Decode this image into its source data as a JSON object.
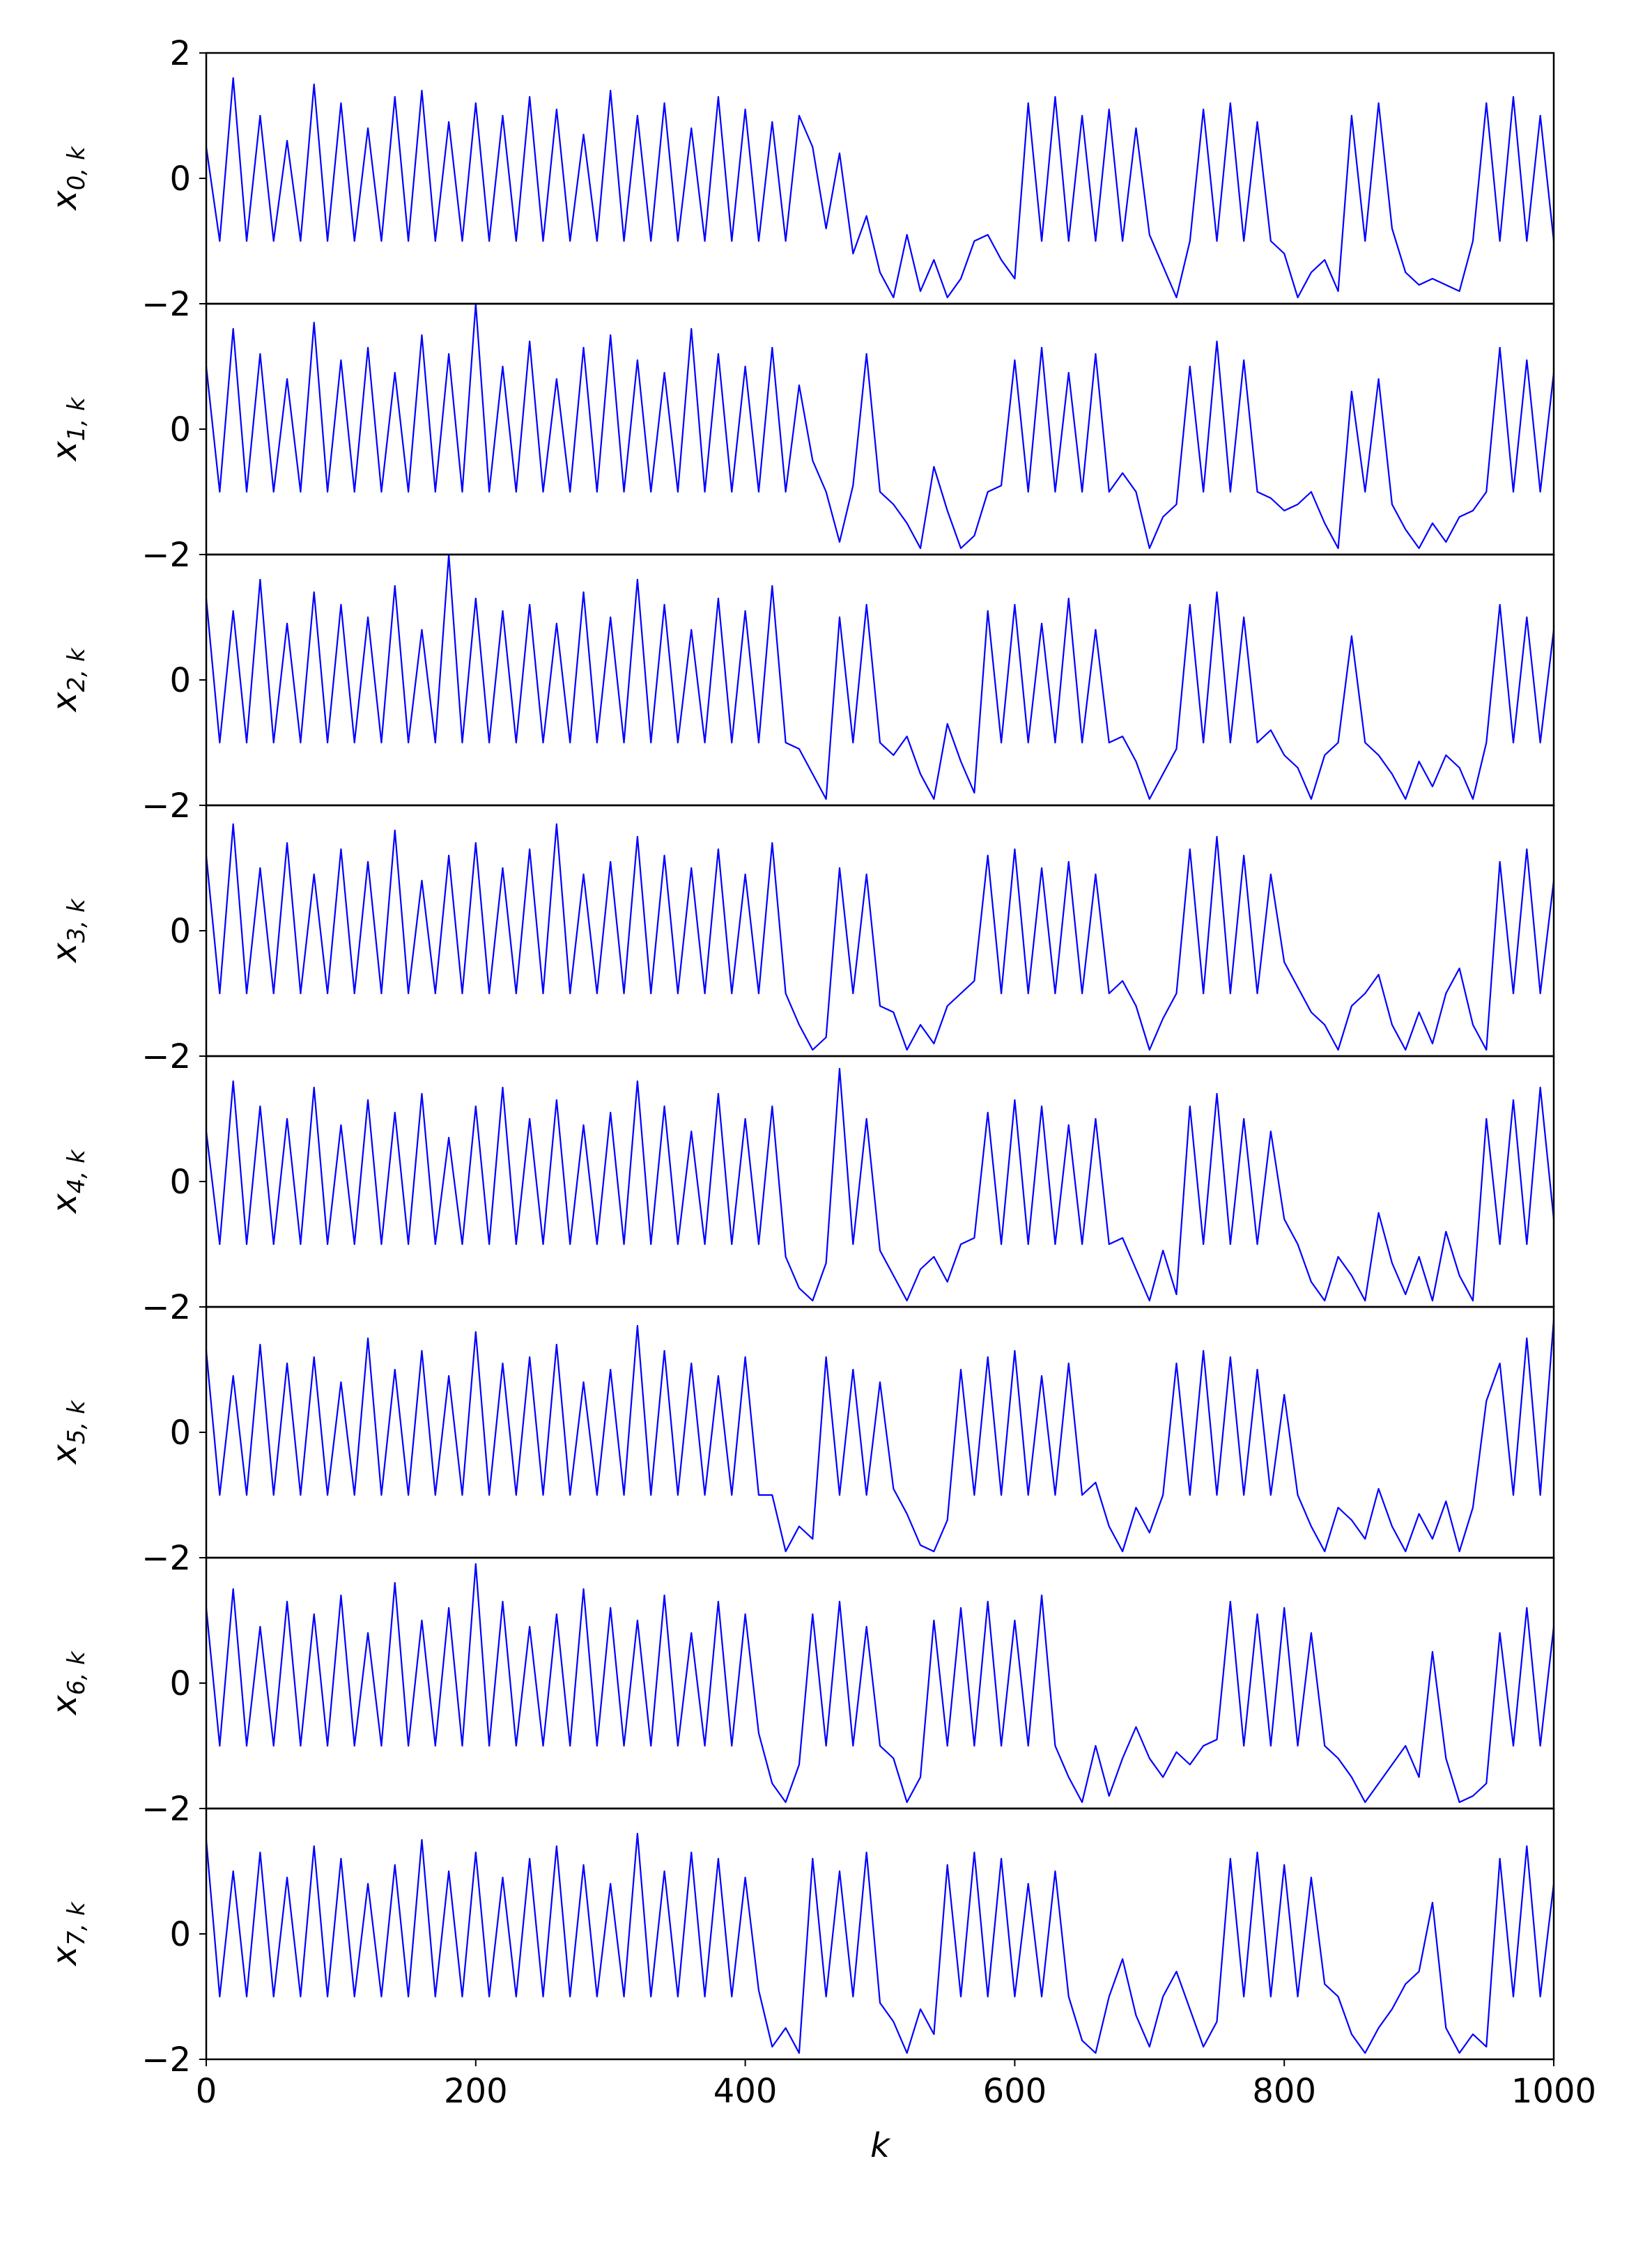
{
  "chart_data": {
    "type": "line",
    "xlabel": "k",
    "xlim": [
      0,
      1000
    ],
    "xticks": [
      0,
      200,
      400,
      600,
      800,
      1000
    ],
    "ylim": [
      -2,
      2
    ],
    "yticks": [
      {
        "value": -2,
        "label": "−2"
      },
      0,
      2
    ],
    "x": [
      0,
      10,
      20,
      30,
      40,
      50,
      60,
      70,
      80,
      90,
      100,
      110,
      120,
      130,
      140,
      150,
      160,
      170,
      180,
      190,
      200,
      210,
      220,
      230,
      240,
      250,
      260,
      270,
      280,
      290,
      300,
      310,
      320,
      330,
      340,
      350,
      360,
      370,
      380,
      390,
      400,
      410,
      420,
      430,
      440,
      450,
      460,
      470,
      480,
      490,
      500,
      510,
      520,
      530,
      540,
      550,
      560,
      570,
      580,
      590,
      600,
      610,
      620,
      630,
      640,
      650,
      660,
      670,
      680,
      690,
      700,
      710,
      720,
      730,
      740,
      750,
      760,
      770,
      780,
      790,
      800,
      810,
      820,
      830,
      840,
      850,
      860,
      870,
      880,
      890,
      900,
      910,
      920,
      930,
      940,
      950,
      960,
      970,
      980,
      990,
      1000
    ],
    "series": [
      {
        "name": "x",
        "subscript": "0, k",
        "color": "#0000ff",
        "values": [
          0.5,
          -1,
          1.6,
          -1,
          1.0,
          -1,
          0.6,
          -1,
          1.5,
          -1,
          1.2,
          -1,
          0.8,
          -1,
          1.3,
          -1,
          1.4,
          -1,
          0.9,
          -1,
          1.2,
          -1,
          1.0,
          -1,
          1.3,
          -1,
          1.1,
          -1,
          0.7,
          -1,
          1.4,
          -1,
          1.0,
          -1,
          1.2,
          -1,
          0.8,
          -1,
          1.3,
          -1,
          1.1,
          -1,
          0.9,
          -1,
          1.0,
          0.5,
          -0.8,
          0.4,
          -1.2,
          -0.6,
          -1.5,
          -1.9,
          -0.9,
          -1.8,
          -1.3,
          -1.9,
          -1.6,
          -1.0,
          -0.9,
          -1.3,
          -1.6,
          1.2,
          -1,
          1.3,
          -1,
          1.0,
          -1,
          1.1,
          -1,
          0.8,
          -0.9,
          -1.4,
          -1.9,
          -1.0,
          1.1,
          -1,
          1.2,
          -1,
          0.9,
          -1.0,
          -1.2,
          -1.9,
          -1.5,
          -1.3,
          -1.8,
          1.0,
          -1,
          1.2,
          -0.8,
          -1.5,
          -1.7,
          -1.6,
          -1.7,
          -1.8,
          -1.0,
          1.2,
          -1,
          1.3,
          -1,
          1.0,
          -1
        ]
      },
      {
        "name": "x",
        "subscript": "1, k",
        "color": "#0000ff",
        "values": [
          1.0,
          -1,
          1.6,
          -1,
          1.2,
          -1,
          0.8,
          -1,
          1.7,
          -1,
          1.1,
          -1,
          1.3,
          -1,
          0.9,
          -1,
          1.5,
          -1,
          1.2,
          -1,
          2.0,
          -1,
          1.0,
          -1,
          1.4,
          -1,
          0.8,
          -1,
          1.3,
          -1,
          1.5,
          -1,
          1.1,
          -1,
          0.9,
          -1,
          1.6,
          -1,
          1.2,
          -1,
          1.0,
          -1,
          1.3,
          -1,
          0.7,
          -0.5,
          -1.0,
          -1.8,
          -0.9,
          1.2,
          -1,
          -1.2,
          -1.5,
          -1.9,
          -0.6,
          -1.3,
          -1.9,
          -1.7,
          -1.0,
          -0.9,
          1.1,
          -1,
          1.3,
          -1,
          0.9,
          -1,
          1.2,
          -1,
          -0.7,
          -1.0,
          -1.9,
          -1.4,
          -1.2,
          1.0,
          -1,
          1.4,
          -1,
          1.1,
          -1,
          -1.1,
          -1.3,
          -1.2,
          -1.0,
          -1.5,
          -1.9,
          0.6,
          -1,
          0.8,
          -1.2,
          -1.6,
          -1.9,
          -1.5,
          -1.8,
          -1.4,
          -1.3,
          -1.0,
          1.3,
          -1,
          1.1,
          -1,
          0.9
        ]
      },
      {
        "name": "x",
        "subscript": "2, k",
        "color": "#0000ff",
        "values": [
          1.3,
          -1,
          1.1,
          -1,
          1.6,
          -1,
          0.9,
          -1,
          1.4,
          -1,
          1.2,
          -1,
          1.0,
          -1,
          1.5,
          -1,
          0.8,
          -1,
          2.0,
          -1,
          1.3,
          -1,
          1.1,
          -1,
          1.2,
          -1,
          0.9,
          -1,
          1.4,
          -1,
          1.0,
          -1,
          1.6,
          -1,
          1.2,
          -1,
          0.8,
          -1,
          1.3,
          -1,
          1.1,
          -1,
          1.5,
          -1,
          -1.1,
          -1.5,
          -1.9,
          1.0,
          -1,
          1.2,
          -1.0,
          -1.2,
          -0.9,
          -1.5,
          -1.9,
          -0.7,
          -1.3,
          -1.8,
          1.1,
          -1,
          1.2,
          -1,
          0.9,
          -1,
          1.3,
          -1,
          0.8,
          -1,
          -0.9,
          -1.3,
          -1.9,
          -1.5,
          -1.1,
          1.2,
          -1,
          1.4,
          -1,
          1.0,
          -1,
          -0.8,
          -1.2,
          -1.4,
          -1.9,
          -1.2,
          -1.0,
          0.7,
          -1,
          -1.2,
          -1.5,
          -1.9,
          -1.3,
          -1.7,
          -1.2,
          -1.4,
          -1.9,
          -1.0,
          1.2,
          -1,
          1.0,
          -1,
          0.8
        ]
      },
      {
        "name": "x",
        "subscript": "3, k",
        "color": "#0000ff",
        "values": [
          1.2,
          -1,
          1.7,
          -1,
          1.0,
          -1,
          1.4,
          -1,
          0.9,
          -1,
          1.3,
          -1,
          1.1,
          -1,
          1.6,
          -1,
          0.8,
          -1,
          1.2,
          -1,
          1.4,
          -1,
          1.0,
          -1,
          1.3,
          -1,
          1.7,
          -1,
          0.9,
          -1,
          1.1,
          -1,
          1.5,
          -1,
          1.2,
          -1,
          1.0,
          -1,
          1.3,
          -1,
          0.9,
          -1,
          1.4,
          -1.0,
          -1.5,
          -1.9,
          -1.7,
          1.0,
          -1,
          0.9,
          -1.2,
          -1.3,
          -1.9,
          -1.5,
          -1.8,
          -1.2,
          -1.0,
          -0.8,
          1.2,
          -1,
          1.3,
          -1,
          1.0,
          -1,
          1.1,
          -1,
          0.9,
          -1,
          -0.8,
          -1.2,
          -1.9,
          -1.4,
          -1.0,
          1.3,
          -1,
          1.5,
          -1,
          1.2,
          -1,
          0.9,
          -0.5,
          -0.9,
          -1.3,
          -1.5,
          -1.9,
          -1.2,
          -1.0,
          -0.7,
          -1.5,
          -1.9,
          -1.3,
          -1.8,
          -1.0,
          -0.6,
          -1.5,
          -1.9,
          1.1,
          -1,
          1.3,
          -1,
          0.8
        ]
      },
      {
        "name": "x",
        "subscript": "4, k",
        "color": "#0000ff",
        "values": [
          0.8,
          -1,
          1.6,
          -1,
          1.2,
          -1,
          1.0,
          -1,
          1.5,
          -1,
          0.9,
          -1,
          1.3,
          -1,
          1.1,
          -1,
          1.4,
          -1,
          0.7,
          -1,
          1.2,
          -1,
          1.5,
          -1,
          1.0,
          -1,
          1.3,
          -1,
          0.9,
          -1,
          1.1,
          -1,
          1.6,
          -1,
          1.2,
          -1,
          0.8,
          -1,
          1.4,
          -1,
          1.0,
          -1,
          1.2,
          -1.2,
          -1.7,
          -1.9,
          -1.3,
          1.8,
          -1,
          1.0,
          -1.1,
          -1.5,
          -1.9,
          -1.4,
          -1.2,
          -1.6,
          -1.0,
          -0.9,
          1.1,
          -1,
          1.3,
          -1,
          1.2,
          -1,
          0.9,
          -1,
          1.0,
          -1,
          -0.9,
          -1.4,
          -1.9,
          -1.1,
          -1.8,
          1.2,
          -1,
          1.4,
          -1,
          1.0,
          -1,
          0.8,
          -0.6,
          -1.0,
          -1.6,
          -1.9,
          -1.2,
          -1.5,
          -1.9,
          -0.5,
          -1.3,
          -1.8,
          -1.2,
          -1.9,
          -0.8,
          -1.5,
          -1.9,
          1.0,
          -1,
          1.3,
          -1,
          1.5,
          -0.6
        ]
      },
      {
        "name": "x",
        "subscript": "5, k",
        "color": "#0000ff",
        "values": [
          1.3,
          -1,
          0.9,
          -1,
          1.4,
          -1,
          1.1,
          -1,
          1.2,
          -1,
          0.8,
          -1,
          1.5,
          -1,
          1.0,
          -1,
          1.3,
          -1,
          0.9,
          -1,
          1.6,
          -1,
          1.1,
          -1,
          1.2,
          -1,
          1.4,
          -1,
          0.8,
          -1,
          1.0,
          -1,
          1.7,
          -1,
          1.3,
          -1,
          1.1,
          -1,
          0.9,
          -1,
          1.2,
          -1,
          -1.0,
          -1.9,
          -1.5,
          -1.7,
          1.2,
          -1,
          1.0,
          -1,
          0.8,
          -0.9,
          -1.3,
          -1.8,
          -1.9,
          -1.4,
          1.0,
          -1,
          1.2,
          -1,
          1.3,
          -1,
          0.9,
          -1,
          1.1,
          -1,
          -0.8,
          -1.5,
          -1.9,
          -1.2,
          -1.6,
          -1.0,
          1.1,
          -1,
          1.3,
          -1,
          1.2,
          -1,
          1.0,
          -1,
          0.6,
          -1.0,
          -1.5,
          -1.9,
          -1.2,
          -1.4,
          -1.7,
          -0.9,
          -1.5,
          -1.9,
          -1.3,
          -1.7,
          -1.1,
          -1.9,
          -1.2,
          0.5,
          1.1,
          -1,
          1.5,
          -1,
          1.8
        ]
      },
      {
        "name": "x",
        "subscript": "6, k",
        "color": "#0000ff",
        "values": [
          1.2,
          -1,
          1.5,
          -1,
          0.9,
          -1,
          1.3,
          -1,
          1.1,
          -1,
          1.4,
          -1,
          0.8,
          -1,
          1.6,
          -1,
          1.0,
          -1,
          1.2,
          -1,
          1.9,
          -1,
          1.3,
          -1,
          0.9,
          -1,
          1.1,
          -1,
          1.5,
          -1,
          1.2,
          -1,
          1.0,
          -1,
          1.4,
          -1,
          0.8,
          -1,
          1.3,
          -1,
          1.1,
          -0.8,
          -1.6,
          -1.9,
          -1.3,
          1.1,
          -1,
          1.3,
          -1,
          0.9,
          -1,
          -1.2,
          -1.9,
          -1.5,
          1.0,
          -1,
          1.2,
          -1,
          1.3,
          -1,
          1.0,
          -1,
          1.4,
          -1,
          -1.5,
          -1.9,
          -1.0,
          -1.8,
          -1.2,
          -0.7,
          -1.2,
          -1.5,
          -1.1,
          -1.3,
          -1.0,
          -0.9,
          1.3,
          -1,
          1.1,
          -1,
          1.2,
          -1,
          0.8,
          -1,
          -1.2,
          -1.5,
          -1.9,
          -1.6,
          -1.3,
          -1.0,
          -1.5,
          0.5,
          -1.2,
          -1.9,
          -1.8,
          -1.6,
          0.8,
          -1,
          1.2,
          -1,
          0.9
        ]
      },
      {
        "name": "x",
        "subscript": "7, k",
        "color": "#0000ff",
        "values": [
          1.5,
          -1,
          1.0,
          -1,
          1.3,
          -1,
          0.9,
          -1,
          1.4,
          -1,
          1.2,
          -1,
          0.8,
          -1,
          1.1,
          -1,
          1.5,
          -1,
          1.0,
          -1,
          1.3,
          -1,
          0.9,
          -1,
          1.2,
          -1,
          1.4,
          -1,
          1.1,
          -1,
          0.8,
          -1,
          1.6,
          -1,
          1.0,
          -1,
          1.3,
          -1,
          1.2,
          -1,
          0.9,
          -0.9,
          -1.8,
          -1.5,
          -1.9,
          1.2,
          -1,
          1.0,
          -1,
          1.3,
          -1.1,
          -1.4,
          -1.9,
          -1.2,
          -1.6,
          1.1,
          -1,
          1.3,
          -1,
          1.2,
          -1,
          0.8,
          -1,
          1.0,
          -1.0,
          -1.7,
          -1.9,
          -1.0,
          -0.4,
          -1.3,
          -1.8,
          -1.0,
          -0.6,
          -1.2,
          -1.8,
          -1.4,
          1.2,
          -1,
          1.3,
          -1,
          1.1,
          -1,
          0.9,
          -0.8,
          -1.0,
          -1.6,
          -1.9,
          -1.5,
          -1.2,
          -0.8,
          -0.6,
          0.5,
          -1.5,
          -1.9,
          -1.6,
          -1.8,
          1.2,
          -1,
          1.4,
          -1,
          0.8
        ]
      }
    ]
  }
}
